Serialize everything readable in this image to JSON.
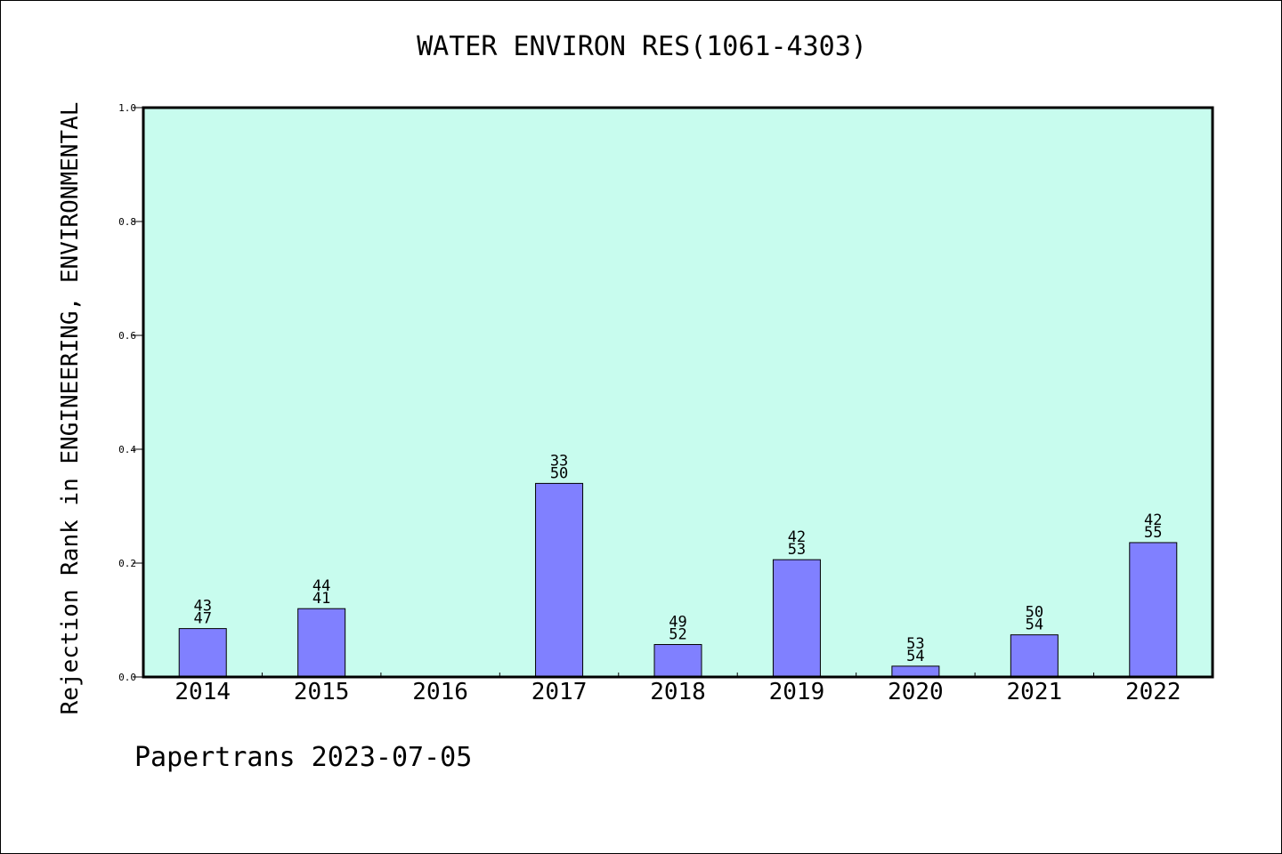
{
  "chart_data": {
    "type": "bar",
    "title": "WATER ENVIRON RES(1061-4303)",
    "xlabel": "",
    "ylabel": "Rejection Rank in ENGINEERING, ENVIRONMENTAL",
    "ylim": [
      0,
      1.0
    ],
    "yticks": [
      "0.0",
      "0.2",
      "0.4",
      "0.6",
      "0.8",
      "1.0"
    ],
    "categories": [
      "2014",
      "2015",
      "2016",
      "2017",
      "2018",
      "2019",
      "2020",
      "2021",
      "2022"
    ],
    "values": [
      0.085,
      0.12,
      null,
      0.34,
      0.057,
      0.206,
      0.019,
      0.074,
      0.236
    ],
    "labels_top": [
      "43",
      "44",
      "",
      "33",
      "49",
      "42",
      "53",
      "50",
      "42"
    ],
    "labels_bottom": [
      "47",
      "41",
      "",
      "50",
      "52",
      "53",
      "54",
      "54",
      "55"
    ],
    "grid": false,
    "colors": {
      "bar": "#8080ff",
      "plot_background": "#c8fcee",
      "axis": "#000000"
    }
  },
  "footer": {
    "credit": "Papertrans 2023-07-05"
  }
}
